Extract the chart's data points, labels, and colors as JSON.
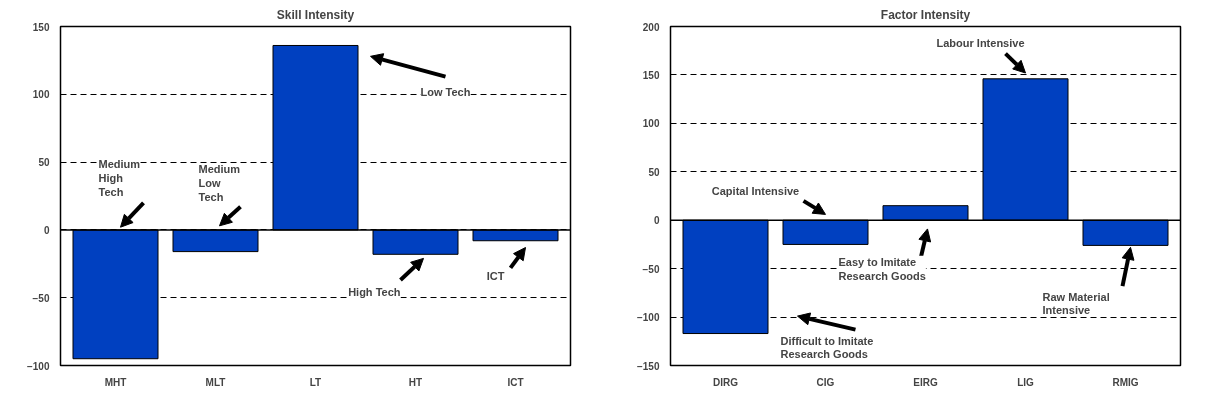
{
  "chart_data": [
    {
      "type": "bar",
      "title": "Skill Intensity",
      "categories": [
        "MHT",
        "MLT",
        "LT",
        "HT",
        "ICT"
      ],
      "values": [
        -95,
        -16,
        136,
        -18,
        -8
      ],
      "color": "#0040c0",
      "ylim": [
        -100,
        150
      ],
      "yticks": [
        -100,
        -50,
        0,
        50,
        100,
        150
      ],
      "grid": "y",
      "annotations": [
        "Medium\nHigh\nTech",
        "Medium\nLow\nTech",
        "Low Tech",
        "High Tech",
        "ICT"
      ]
    },
    {
      "type": "bar",
      "title": "Factor Intensity",
      "categories": [
        "DIRG",
        "CIG",
        "EIRG",
        "LIG",
        "RMIG"
      ],
      "values": [
        -117,
        -25,
        15,
        146,
        -26
      ],
      "color": "#0040c0",
      "ylim": [
        -150,
        200
      ],
      "yticks": [
        -150,
        -100,
        -50,
        0,
        50,
        100,
        150,
        200
      ],
      "grid": "y",
      "annotations": [
        "Labour Intensive",
        "Capital Intensive",
        "Easy to Imitate\nResearch Goods",
        {
          "text": "Raw Material\nIntensive",
          "x": "RMIG",
          "y": -26
        },
        "Difficult to Imitate\nResearch Goods"
      ]
    }
  ]
}
